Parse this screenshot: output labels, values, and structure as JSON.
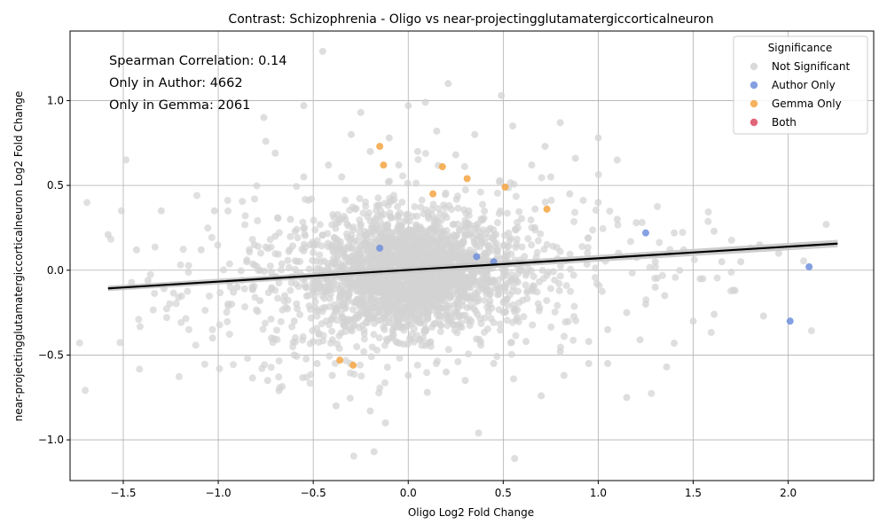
{
  "chart_data": {
    "type": "scatter",
    "title": "Contrast: Schizophrenia - Oligo vs near-projectingglutamatergiccorticalneuron",
    "xlabel": "Oligo Log2 Fold Change",
    "ylabel": "near-projectingglutamatergiccorticalneuron Log2 Fold Change",
    "xlim": [
      -1.78,
      2.45
    ],
    "ylim": [
      -1.24,
      1.41
    ],
    "x_ticks": [
      -1.5,
      -1.0,
      -0.5,
      0.0,
      0.5,
      1.0,
      1.5,
      2.0
    ],
    "y_ticks": [
      -1.0,
      -0.5,
      0.0,
      0.5,
      1.0
    ],
    "x_tick_labels": [
      "−1.5",
      "−1.0",
      "−0.5",
      "0.0",
      "0.5",
      "1.0",
      "1.5",
      "2.0"
    ],
    "y_tick_labels": [
      "−1.0",
      "−0.5",
      "0.0",
      "0.5",
      "1.0"
    ],
    "grid": true,
    "legend_placement": "top-right",
    "legend_title": "Significance",
    "annotations": [
      "Spearman Correlation: 0.14",
      "Only in Author: 4662",
      "Only in Gemma: 2061"
    ],
    "colors": {
      "not_significant": "#d3d3d3",
      "author_only": "#6f8fdc",
      "gemma_only": "#f5a442",
      "both": "#dc4a62",
      "regression": "#000000",
      "ci_band": "#c8c8c8"
    },
    "regression": {
      "x": [
        -1.58,
        2.26
      ],
      "y": [
        -0.107,
        0.157
      ],
      "ci_halfwidth": [
        0.016,
        0.022
      ]
    },
    "series": [
      {
        "name": "Not Significant",
        "color": "#d3d3d3",
        "points": [
          [
            -1.58,
            0.21
          ],
          [
            -1.43,
            0.12
          ],
          [
            -1.37,
            -0.06
          ],
          [
            -1.3,
            0.35
          ],
          [
            -1.09,
            0.12
          ],
          [
            -1.03,
            -0.4
          ],
          [
            -1.02,
            0.35
          ],
          [
            -0.93,
            -0.2
          ],
          [
            -0.9,
            -0.1
          ],
          [
            -0.81,
            0.15
          ],
          [
            -0.78,
            -0.18
          ],
          [
            -0.76,
            0.9
          ],
          [
            -0.75,
            0.76
          ],
          [
            -0.74,
            -0.65
          ],
          [
            -0.7,
            0.69
          ],
          [
            -0.68,
            -0.71
          ],
          [
            -0.55,
            0.97
          ],
          [
            -0.45,
            1.29
          ],
          [
            -0.38,
            -0.8
          ],
          [
            -0.3,
            0.8
          ],
          [
            -0.25,
            0.93
          ],
          [
            -0.2,
            -0.83
          ],
          [
            -0.18,
            -1.07
          ],
          [
            -0.12,
            -0.9
          ],
          [
            0.0,
            0.97
          ],
          [
            0.09,
            0.99
          ],
          [
            0.21,
            1.1
          ],
          [
            0.37,
            -0.96
          ],
          [
            0.49,
            1.03
          ],
          [
            0.56,
            -1.11
          ],
          [
            0.72,
            0.73
          ],
          [
            0.8,
            0.87
          ],
          [
            0.88,
            0.66
          ],
          [
            1.0,
            0.78
          ],
          [
            1.1,
            0.65
          ],
          [
            1.15,
            -0.75
          ],
          [
            1.22,
            -0.41
          ],
          [
            1.36,
            -0.57
          ],
          [
            1.4,
            -0.43
          ],
          [
            1.61,
            -0.26
          ],
          [
            1.72,
            -0.12
          ],
          [
            1.8,
            0.13
          ],
          [
            1.87,
            -0.27
          ],
          [
            1.85,
            0.15
          ],
          [
            2.2,
            0.27
          ],
          [
            1.95,
            0.1
          ],
          [
            1.61,
            0.23
          ],
          [
            1.5,
            -0.3
          ],
          [
            1.3,
            0.05
          ],
          [
            1.05,
            -0.55
          ],
          [
            0.95,
            -0.55
          ],
          [
            0.82,
            -0.62
          ],
          [
            0.7,
            -0.74
          ],
          [
            0.62,
            -0.42
          ],
          [
            -0.6,
            -0.5
          ],
          [
            -0.85,
            0.05
          ],
          [
            -0.92,
            -0.13
          ],
          [
            -0.55,
            0.55
          ],
          [
            -0.42,
            0.62
          ],
          [
            -0.35,
            0.55
          ],
          [
            -0.6,
            -0.3
          ],
          [
            -0.62,
            0.3
          ],
          [
            -0.5,
            -0.42
          ],
          [
            0.1,
            -0.72
          ],
          [
            0.2,
            -0.6
          ],
          [
            0.3,
            -0.65
          ],
          [
            0.45,
            -0.55
          ],
          [
            0.55,
            0.85
          ],
          [
            0.35,
            0.8
          ],
          [
            0.15,
            0.82
          ],
          [
            -0.1,
            0.78
          ],
          [
            -0.2,
            0.7
          ],
          [
            0.65,
            0.62
          ],
          [
            0.75,
            0.55
          ],
          [
            0.85,
            0.45
          ],
          [
            1.0,
            0.4
          ],
          [
            1.1,
            0.3
          ],
          [
            1.2,
            0.28
          ],
          [
            1.25,
            -0.2
          ],
          [
            1.35,
            -0.15
          ],
          [
            1.45,
            0.12
          ],
          [
            1.55,
            -0.05
          ],
          [
            1.65,
            0.05
          ],
          [
            1.75,
            0.05
          ],
          [
            1.4,
            0.22
          ],
          [
            1.3,
            -0.1
          ],
          [
            1.15,
            -0.25
          ],
          [
            1.05,
            -0.35
          ],
          [
            0.95,
            -0.42
          ],
          [
            0.8,
            -0.48
          ],
          [
            -0.7,
            0.2
          ],
          [
            -0.65,
            -0.15
          ],
          [
            -0.78,
            0.0
          ],
          [
            -0.72,
            -0.4
          ],
          [
            -0.48,
            -0.55
          ],
          [
            -0.4,
            -0.62
          ],
          [
            0.0,
            -0.62
          ],
          [
            0.05,
            0.7
          ],
          [
            -0.05,
            0.62
          ],
          [
            0.25,
            0.68
          ]
        ]
      },
      {
        "name": "Author Only",
        "color": "#6f8fdc",
        "points": [
          [
            1.25,
            0.22
          ],
          [
            2.11,
            0.02
          ],
          [
            2.01,
            -0.3
          ],
          [
            0.45,
            0.05
          ],
          [
            0.36,
            0.08
          ],
          [
            -0.15,
            0.13
          ]
        ]
      },
      {
        "name": "Gemma Only",
        "color": "#f5a442",
        "points": [
          [
            -0.15,
            0.73
          ],
          [
            -0.13,
            0.62
          ],
          [
            0.13,
            0.45
          ],
          [
            0.31,
            0.54
          ],
          [
            0.51,
            0.49
          ],
          [
            0.73,
            0.36
          ],
          [
            -0.36,
            -0.53
          ],
          [
            -0.29,
            -0.56
          ],
          [
            0.18,
            0.61
          ]
        ]
      },
      {
        "name": "Both",
        "color": "#dc4a62",
        "points": []
      }
    ],
    "cloud_center": [
      0.0,
      -0.03
    ]
  }
}
